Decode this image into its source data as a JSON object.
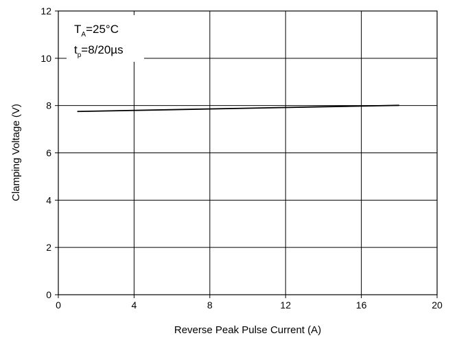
{
  "chart_data": {
    "type": "line",
    "title": "",
    "xlabel": "Reverse Peak Pulse Current (A)",
    "ylabel": "Clamping Voltage (V)",
    "xlim": [
      0,
      20
    ],
    "ylim": [
      0,
      12
    ],
    "xticks": [
      0,
      4,
      8,
      12,
      16,
      20
    ],
    "yticks": [
      0,
      2,
      4,
      6,
      8,
      10,
      12
    ],
    "grid": true,
    "legend": "none",
    "line_color": "#000000",
    "series": [
      {
        "x": [
          1,
          18
        ],
        "y": [
          7.75,
          8.01
        ]
      }
    ],
    "annotations": [
      {
        "main": "T",
        "sub": "A",
        "rest": "=25°C"
      },
      {
        "main": "t",
        "sub": "p",
        "rest": "=8/20µs"
      }
    ]
  }
}
